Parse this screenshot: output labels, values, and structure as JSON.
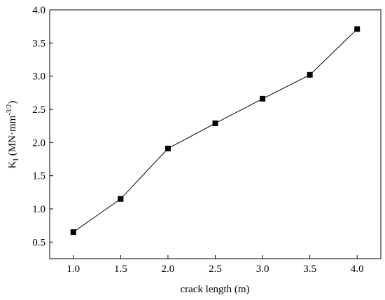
{
  "chart_data": {
    "type": "line",
    "title": "",
    "xlabel": "crack length (m)",
    "ylabel": {
      "main": "K",
      "subscript": "I",
      "unit_prefix": " (MN·mm",
      "unit_exponent": "-3/2",
      "unit_suffix": ")"
    },
    "xlim": [
      0.75,
      4.25
    ],
    "ylim": [
      0.25,
      4.0
    ],
    "xticks": [
      "1.0",
      "1.5",
      "2.0",
      "2.5",
      "3.0",
      "3.5",
      "4.0"
    ],
    "yticks": [
      "0.5",
      "1.0",
      "1.5",
      "2.0",
      "2.5",
      "3.0",
      "3.5",
      "4.0"
    ],
    "grid": false,
    "series": [
      {
        "marker": "square",
        "color": "#000000",
        "x": [
          1.0,
          1.5,
          2.0,
          2.5,
          3.0,
          3.5,
          4.0
        ],
        "y": [
          0.65,
          1.15,
          1.91,
          2.29,
          2.66,
          3.02,
          3.71
        ]
      }
    ]
  }
}
